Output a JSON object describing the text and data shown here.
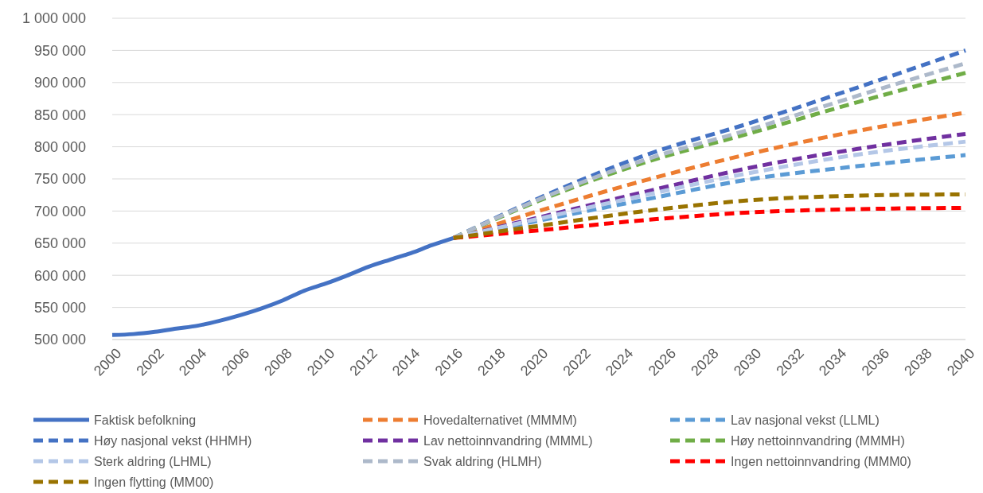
{
  "chart_data": {
    "type": "line",
    "legend": "bottom",
    "grid": "y",
    "line_style": "dashed",
    "xlim": [
      2000,
      2040
    ],
    "xticks": [
      2000,
      2002,
      2004,
      2006,
      2008,
      2010,
      2012,
      2014,
      2016,
      2018,
      2020,
      2022,
      2024,
      2026,
      2028,
      2030,
      2032,
      2034,
      2036,
      2038,
      2040
    ],
    "ylim": [
      500000,
      1000000
    ],
    "yticks": [
      {
        "value": 500000,
        "label": "500 000"
      },
      {
        "value": 550000,
        "label": "550 000"
      },
      {
        "value": 600000,
        "label": "600 000"
      },
      {
        "value": 650000,
        "label": "650 000"
      },
      {
        "value": 700000,
        "label": "700 000"
      },
      {
        "value": 750000,
        "label": "750 000"
      },
      {
        "value": 800000,
        "label": "800 000"
      },
      {
        "value": 850000,
        "label": "850 000"
      },
      {
        "value": 900000,
        "label": "900 000"
      },
      {
        "value": 950000,
        "label": "950 000"
      },
      {
        "value": 1000000,
        "label": "1 000 000"
      }
    ],
    "series": [
      {
        "name": "Faktisk befolkning",
        "color": "#4472c4",
        "line_style": "solid",
        "x": [
          2000,
          2001,
          2002,
          2003,
          2004,
          2005,
          2006,
          2007,
          2008,
          2009,
          2010,
          2011,
          2012,
          2013,
          2014,
          2015,
          2016
        ],
        "values": [
          507000,
          508500,
          512000,
          517000,
          521500,
          529000,
          538000,
          548500,
          561000,
          576000,
          587000,
          599500,
          613000,
          624000,
          634500,
          647000,
          658000
        ]
      },
      {
        "name": "Hovedalternativet (MMMM)",
        "color": "#ed7d31",
        "x": [
          2016,
          2020,
          2025,
          2030,
          2035,
          2040
        ],
        "values": [
          658000,
          700000,
          748000,
          790000,
          825000,
          853000
        ]
      },
      {
        "name": "Lav nasjonal vekst (LLML)",
        "color": "#5b9bd5",
        "x": [
          2016,
          2020,
          2025,
          2030,
          2035,
          2040
        ],
        "values": [
          658000,
          685000,
          718000,
          750000,
          770000,
          787000
        ]
      },
      {
        "name": "Høy nasjonal vekst (HHMH)",
        "color": "#4472c4",
        "x": [
          2016,
          2020,
          2025,
          2030,
          2035,
          2040
        ],
        "values": [
          658000,
          720000,
          787000,
          838000,
          893000,
          950000
        ]
      },
      {
        "name": "Lav nettoinnvandring (MMML)",
        "color": "#7030a0",
        "x": [
          2016,
          2020,
          2025,
          2030,
          2035,
          2040
        ],
        "values": [
          658000,
          690000,
          730000,
          768000,
          797000,
          820000
        ]
      },
      {
        "name": "Høy nettoinnvandring (MMMH)",
        "color": "#70ad47",
        "x": [
          2016,
          2020,
          2025,
          2030,
          2035,
          2040
        ],
        "values": [
          658000,
          716000,
          776000,
          822000,
          870000,
          915000
        ]
      },
      {
        "name": "Sterk aldring (LHML)",
        "color": "#b4c7e7",
        "x": [
          2016,
          2020,
          2025,
          2030,
          2035,
          2040
        ],
        "values": [
          658000,
          688000,
          725000,
          760000,
          788000,
          808000
        ]
      },
      {
        "name": "Svak aldring (HLMH)",
        "color": "#adb9ca",
        "x": [
          2016,
          2020,
          2025,
          2030,
          2035,
          2040
        ],
        "values": [
          658000,
          718000,
          780000,
          828000,
          880000,
          930000
        ]
      },
      {
        "name": "Ingen nettoinnvandring (MMM0)",
        "color": "#ff0000",
        "x": [
          2016,
          2020,
          2025,
          2030,
          2035,
          2040
        ],
        "values": [
          658000,
          670000,
          686000,
          698000,
          703000,
          705000
        ]
      },
      {
        "name": "Ingen flytting (MM00)",
        "color": "#997300",
        "x": [
          2016,
          2020,
          2025,
          2030,
          2035,
          2040
        ],
        "values": [
          658000,
          677000,
          700000,
          717000,
          724000,
          726000
        ]
      }
    ]
  }
}
